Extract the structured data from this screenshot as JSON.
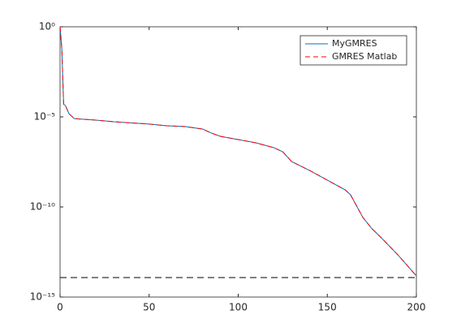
{
  "chart_data": {
    "type": "line",
    "log_y": true,
    "legend": "upper right",
    "x": [
      0,
      1,
      2,
      3,
      5,
      8,
      20,
      30,
      50,
      60,
      70,
      80,
      85,
      90,
      100,
      110,
      120,
      125,
      130,
      140,
      150,
      160,
      163,
      170,
      175,
      180,
      190,
      200
    ],
    "series": [
      {
        "name": "MyGMRES",
        "color": "#0072bd",
        "dash": false,
        "values": [
          1,
          0.06,
          5e-05,
          4.3e-05,
          1.5e-05,
          8e-06,
          6.6e-06,
          5.4e-06,
          4e-06,
          3.2e-06,
          2.9e-06,
          2.1e-06,
          1.26e-06,
          8.3e-07,
          5.5e-07,
          3.6e-07,
          1.95e-07,
          1.15e-07,
          3.3e-08,
          1.07e-08,
          3.1e-09,
          8.9e-10,
          4.8e-10,
          2.6e-11,
          6.3e-12,
          2.1e-12,
          2e-13,
          1.5e-14
        ]
      },
      {
        "name": "GMRES Matlab",
        "color": "#ff0000",
        "dash": true,
        "values": [
          1,
          0.06,
          5e-05,
          4.3e-05,
          1.5e-05,
          8e-06,
          6.6e-06,
          5.4e-06,
          4e-06,
          3.2e-06,
          2.9e-06,
          2.1e-06,
          1.26e-06,
          8.3e-07,
          5.5e-07,
          3.6e-07,
          1.95e-07,
          1.15e-07,
          3.3e-08,
          1.07e-08,
          3.1e-09,
          8.9e-10,
          4.8e-10,
          2.6e-11,
          6.3e-12,
          2.1e-12,
          2e-13,
          1.5e-14
        ]
      }
    ],
    "reference_line": {
      "value": 1.2e-14,
      "color": "#000000"
    },
    "xlim": [
      0,
      200
    ],
    "xticks": [
      0,
      50,
      100,
      150,
      200
    ],
    "ylim": [
      1e-15,
      1
    ],
    "yticks": [
      {
        "value": 1e-15,
        "label": "10⁻¹⁵"
      },
      {
        "value": 1e-10,
        "label": "10⁻¹⁰"
      },
      {
        "value": 1e-05,
        "label": "10⁻⁵"
      },
      {
        "value": 1,
        "label": "10⁰"
      }
    ]
  }
}
